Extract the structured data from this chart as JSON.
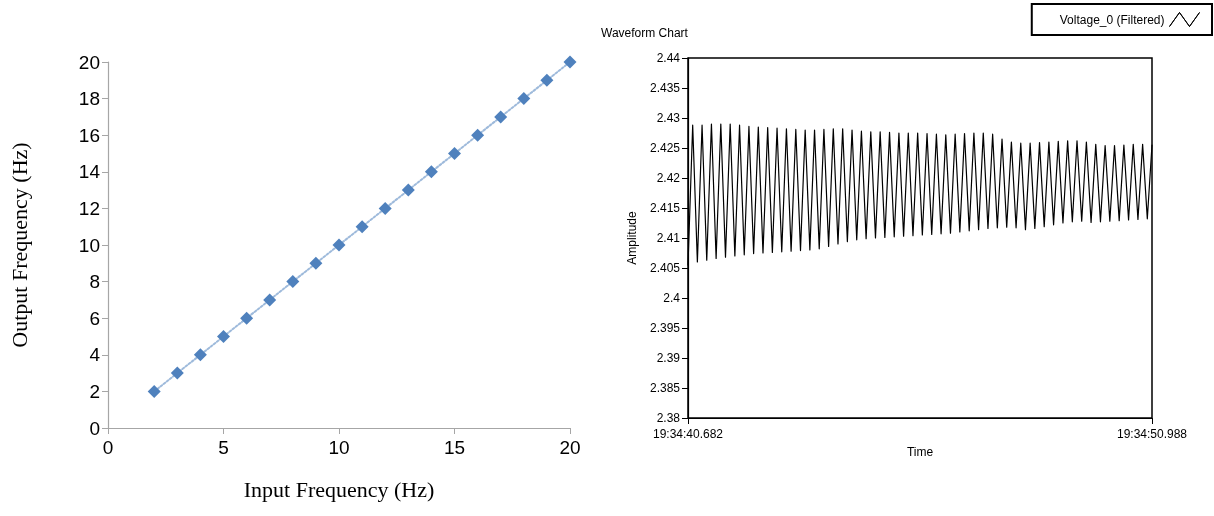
{
  "chart_data": [
    {
      "type": "line",
      "xlabel": "Input Frequency (Hz)",
      "ylabel": "Output Frequency (Hz)",
      "marker": "diamond",
      "line_style": "dotted",
      "grid": false,
      "legend": false,
      "xlim": [
        0,
        20
      ],
      "xticks": [
        0,
        5,
        10,
        15,
        20
      ],
      "ylim": [
        0,
        20
      ],
      "yticks": [
        0,
        2,
        4,
        6,
        8,
        10,
        12,
        14,
        16,
        18,
        20
      ],
      "x": [
        2,
        3,
        4,
        5,
        6,
        7,
        8,
        9,
        10,
        11,
        12,
        13,
        14,
        15,
        16,
        17,
        18,
        19,
        20
      ],
      "series": [
        {
          "color": "#4f81bd",
          "values": [
            2,
            3,
            4,
            5,
            6,
            7,
            8,
            9,
            10,
            11,
            12,
            13,
            14,
            15,
            16,
            17,
            18,
            19,
            20
          ]
        }
      ]
    },
    {
      "type": "line",
      "title": "Waveform Chart",
      "xlabel": "Time",
      "ylabel": "Amplitude",
      "marker": "none",
      "line_style": "solid",
      "grid": false,
      "legend": "top right",
      "categories": [
        "19:34:40.682",
        null,
        null,
        null,
        null,
        null,
        null,
        null,
        null,
        null,
        null,
        null,
        null,
        null,
        null,
        null,
        null,
        null,
        null,
        null,
        null,
        null,
        null,
        null,
        null,
        null,
        null,
        null,
        null,
        null,
        null,
        null,
        null,
        null,
        null,
        null,
        null,
        null,
        null,
        null,
        null,
        null,
        null,
        null,
        null,
        null,
        null,
        null,
        null,
        null,
        null,
        null,
        null,
        null,
        null,
        null,
        null,
        null,
        null,
        null,
        null,
        null,
        null,
        null,
        null,
        null,
        null,
        null,
        null,
        null,
        null,
        null,
        null,
        null,
        null,
        null,
        null,
        null,
        null,
        null,
        null,
        null,
        null,
        null,
        null,
        null,
        null,
        null,
        null,
        null,
        null,
        null,
        null,
        null,
        null,
        null,
        null,
        null,
        null,
        "19:34:50.988"
      ],
      "ylim": [
        2.38,
        2.44
      ],
      "yticks": [
        2.38,
        2.385,
        2.39,
        2.395,
        2.4,
        2.405,
        2.41,
        2.415,
        2.42,
        2.425,
        2.43,
        2.435,
        2.44
      ],
      "series": [
        {
          "name": "Voltage_0 (Filtered)",
          "color": "#000000",
          "values": [
            2.4055,
            2.4288,
            2.406,
            2.4288,
            2.4063,
            2.429,
            2.4066,
            2.429,
            2.4068,
            2.429,
            2.407,
            2.4288,
            2.4072,
            2.4286,
            2.4074,
            2.4285,
            2.4075,
            2.4284,
            2.4076,
            2.4283,
            2.4077,
            2.4282,
            2.4078,
            2.4281,
            2.4079,
            2.428,
            2.408,
            2.428,
            2.4082,
            2.4281,
            2.4086,
            2.4282,
            2.409,
            2.4282,
            2.4094,
            2.428,
            2.4097,
            2.4278,
            2.4099,
            2.4277,
            2.41,
            2.4277,
            2.4101,
            2.4276,
            2.4102,
            2.4275,
            2.4103,
            2.4275,
            2.4104,
            2.4275,
            2.4105,
            2.4274,
            2.4106,
            2.4273,
            2.4107,
            2.4272,
            2.4108,
            2.4273,
            2.411,
            2.4274,
            2.4112,
            2.4275,
            2.4114,
            2.4275,
            2.4116,
            2.4273,
            2.4117,
            2.4265,
            2.4118,
            2.426,
            2.4117,
            2.4258,
            2.4114,
            2.4258,
            2.4116,
            2.4259,
            2.4119,
            2.426,
            2.4122,
            2.4261,
            2.4125,
            2.4262,
            2.4127,
            2.4262,
            2.4128,
            2.426,
            2.4126,
            2.4256,
            2.4127,
            2.4254,
            2.4128,
            2.4254,
            2.4129,
            2.4255,
            2.413,
            2.4256,
            2.4131,
            2.4256,
            2.4132,
            2.4255
          ]
        }
      ]
    }
  ]
}
